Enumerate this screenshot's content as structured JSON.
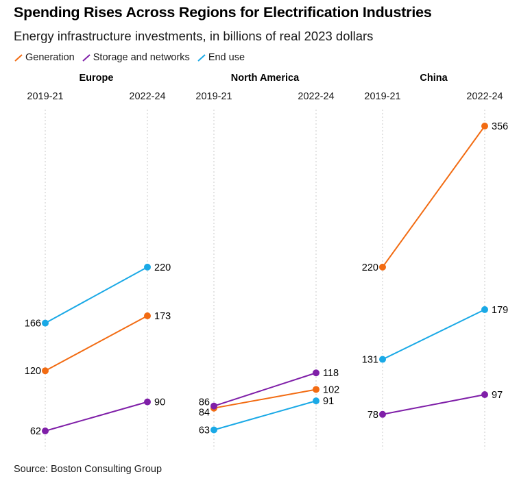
{
  "title": "Spending Rises Across Regions for Electrification Industries",
  "subtitle": "Energy infrastructure investments, in billions of real 2023 dollars",
  "source": "Source: Boston Consulting Group",
  "chart_data": {
    "type": "line",
    "variant": "slope",
    "title": "Spending Rises Across Regions for Electrification Industries",
    "subtitle": "Energy infrastructure investments, in billions of real 2023 dollars",
    "categories": [
      "2019-21",
      "2022-24"
    ],
    "ylim": [
      62,
      356
    ],
    "grid": false,
    "legend_position": "top-left",
    "series_meta": [
      {
        "name": "Generation",
        "color": "#f26b12"
      },
      {
        "name": "Storage and networks",
        "color": "#7f1fa8"
      },
      {
        "name": "End use",
        "color": "#1aa9e6"
      }
    ],
    "panels": [
      {
        "region": "Europe",
        "series": [
          {
            "name": "Generation",
            "values": [
              120,
              173
            ]
          },
          {
            "name": "Storage and networks",
            "values": [
              62,
              90
            ]
          },
          {
            "name": "End use",
            "values": [
              166,
              220
            ]
          }
        ]
      },
      {
        "region": "North America",
        "series": [
          {
            "name": "Generation",
            "values": [
              84,
              102
            ]
          },
          {
            "name": "Storage and networks",
            "values": [
              86,
              118
            ]
          },
          {
            "name": "End use",
            "values": [
              63,
              91
            ]
          }
        ]
      },
      {
        "region": "China",
        "series": [
          {
            "name": "Generation",
            "values": [
              220,
              356
            ]
          },
          {
            "name": "Storage and networks",
            "values": [
              78,
              97
            ]
          },
          {
            "name": "End use",
            "values": [
              131,
              179
            ]
          }
        ]
      }
    ]
  }
}
